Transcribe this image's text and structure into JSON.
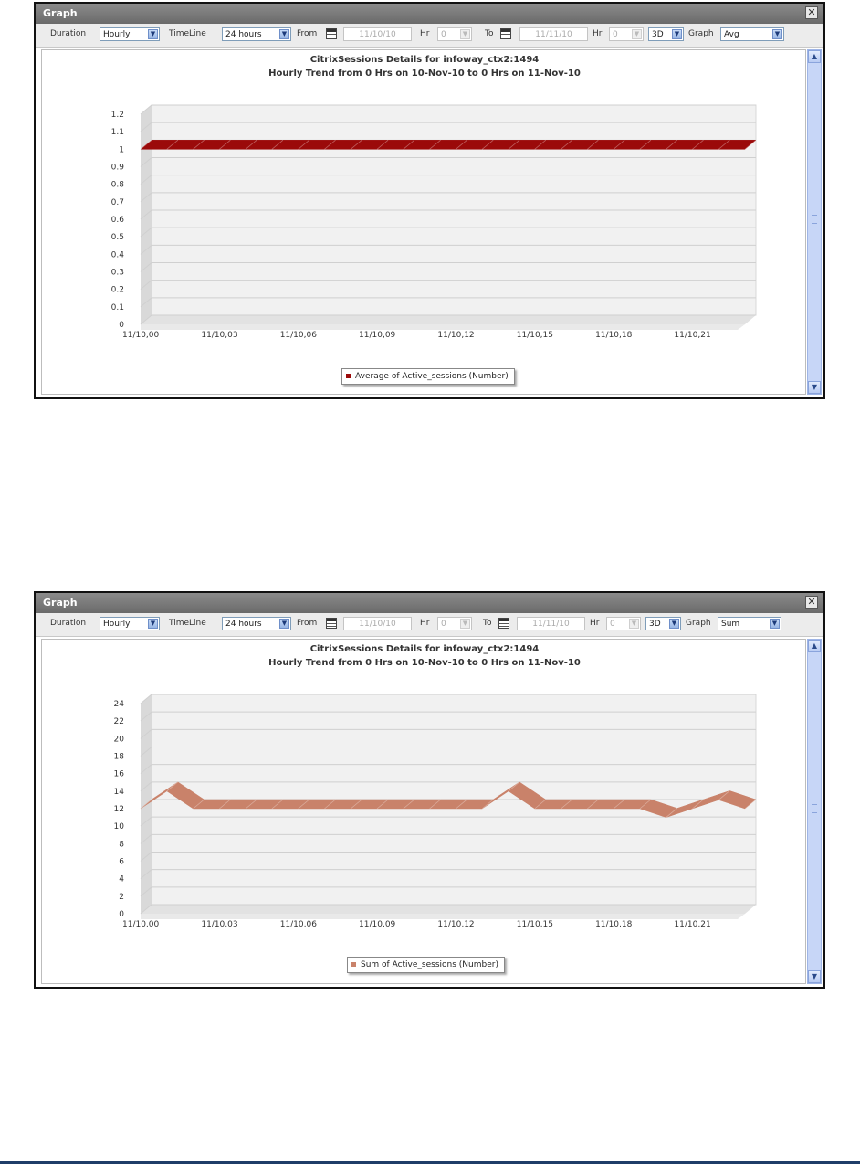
{
  "windows": [
    {
      "title": "Graph",
      "close_icon": "close-icon",
      "toolbar": {
        "duration_label": "Duration",
        "duration_value": "Hourly",
        "timeline_label": "TimeLine",
        "timeline_value": "24 hours",
        "from_label": "From",
        "from_value": "11/10/10",
        "hr_label": "Hr",
        "from_hr_value": "0",
        "to_label": "To",
        "to_value": "11/11/10",
        "to_hr_value": "0",
        "view_value": "3D",
        "graph_label": "Graph",
        "graph_value": "Avg"
      },
      "chart_data": {
        "type": "area",
        "title": "CitrixSessions Details for infoway_ctx2:1494",
        "subtitle": "Hourly Trend from 0 Hrs on 10-Nov-10 to 0 Hrs on 11-Nov-10",
        "x_tick_labels": [
          "11/10,00",
          "11/10,03",
          "11/10,06",
          "11/10,09",
          "11/10,12",
          "11/10,15",
          "11/10,18",
          "11/10,21"
        ],
        "y_tick_labels": [
          "0",
          "0.1",
          "0.2",
          "0.3",
          "0.4",
          "0.5",
          "0.6",
          "0.7",
          "0.8",
          "0.9",
          "1",
          "1.1",
          "1.2"
        ],
        "ylim": [
          0,
          1.2
        ],
        "view": "3D",
        "grid": true,
        "series": [
          {
            "name": "Average of Active_sessions (Number)",
            "color": "#9b0a0a",
            "values": [
              1,
              1,
              1,
              1,
              1,
              1,
              1,
              1,
              1,
              1,
              1,
              1,
              1,
              1,
              1,
              1,
              1,
              1,
              1,
              1,
              1,
              1,
              1,
              1
            ]
          }
        ],
        "legend_position": "bottom-center"
      }
    },
    {
      "title": "Graph",
      "close_icon": "close-icon",
      "toolbar": {
        "duration_label": "Duration",
        "duration_value": "Hourly",
        "timeline_label": "TimeLine",
        "timeline_value": "24 hours",
        "from_label": "From",
        "from_value": "11/10/10",
        "hr_label": "Hr",
        "from_hr_value": "0",
        "to_label": "To",
        "to_value": "11/11/10",
        "to_hr_value": "0",
        "view_value": "3D",
        "graph_label": "Graph",
        "graph_value": "Sum"
      },
      "chart_data": {
        "type": "area",
        "title": "CitrixSessions Details for infoway_ctx2:1494",
        "subtitle": "Hourly Trend from 0 Hrs on 10-Nov-10 to 0 Hrs on 11-Nov-10",
        "x_tick_labels": [
          "11/10,00",
          "11/10,03",
          "11/10,06",
          "11/10,09",
          "11/10,12",
          "11/10,15",
          "11/10,18",
          "11/10,21"
        ],
        "y_tick_labels": [
          "0",
          "2",
          "4",
          "6",
          "8",
          "10",
          "12",
          "14",
          "16",
          "18",
          "20",
          "22",
          "24"
        ],
        "ylim": [
          0,
          24
        ],
        "view": "3D",
        "grid": true,
        "series": [
          {
            "name": "Sum of Active_sessions (Number)",
            "color": "#c9826a",
            "values": [
              12,
              14,
              12,
              12,
              12,
              12,
              12,
              12,
              12,
              12,
              12,
              12,
              12,
              12,
              14,
              12,
              12,
              12,
              12,
              12,
              11,
              12,
              13,
              12
            ]
          }
        ],
        "legend_position": "bottom-center"
      }
    }
  ]
}
